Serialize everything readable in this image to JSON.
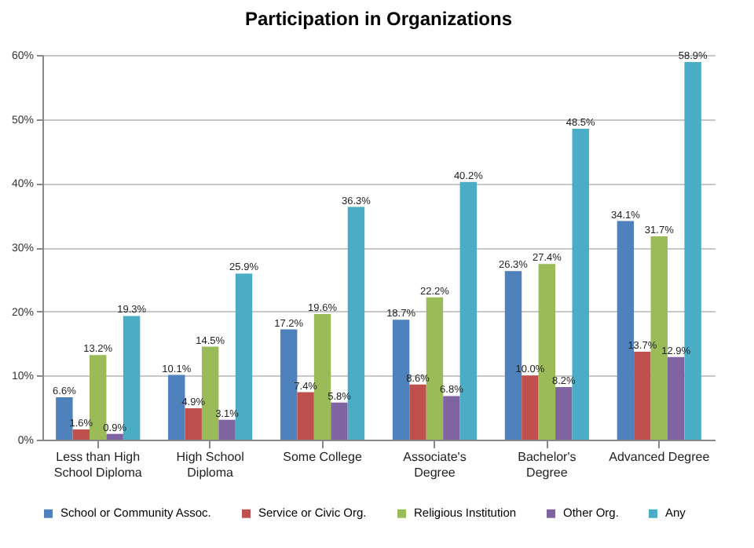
{
  "chart_data": {
    "type": "bar",
    "title": "Participation in Organizations",
    "categories": [
      "Less than High School Diploma",
      "High School Diploma",
      "Some College",
      "Associate's Degree",
      "Bachelor's Degree",
      "Advanced Degree"
    ],
    "series": [
      {
        "name": "School or Community Assoc.",
        "color": "#4f81bd",
        "values": [
          6.6,
          10.1,
          17.2,
          18.7,
          26.3,
          34.1
        ],
        "value_labels": [
          "6.6%",
          "10.1%",
          "17.2%",
          "18.7%",
          "26.3%",
          "34.1%"
        ]
      },
      {
        "name": "Service or Civic Org.",
        "color": "#c0504d",
        "values": [
          1.6,
          4.9,
          7.4,
          8.6,
          10.0,
          13.7
        ],
        "value_labels": [
          "1.6%",
          "4.9%",
          "7.4%",
          "8.6%",
          "10.0%",
          "13.7%"
        ]
      },
      {
        "name": "Religious Institution",
        "color": "#9bbb59",
        "values": [
          13.2,
          14.5,
          19.6,
          22.2,
          27.4,
          31.7
        ],
        "value_labels": [
          "13.2%",
          "14.5%",
          "19.6%",
          "22.2%",
          "27.4%",
          "31.7%"
        ]
      },
      {
        "name": "Other Org.",
        "color": "#8064a2",
        "values": [
          0.9,
          3.1,
          5.8,
          6.8,
          8.2,
          12.9
        ],
        "value_labels": [
          "0.9%",
          "3.1%",
          "5.8%",
          "6.8%",
          "8.2%",
          "12.9%"
        ]
      },
      {
        "name": "Any",
        "color": "#4bacc6",
        "values": [
          19.3,
          25.9,
          36.3,
          40.2,
          48.5,
          58.9
        ],
        "value_labels": [
          "19.3%",
          "25.9%",
          "36.3%",
          "40.2%",
          "48.5%",
          "58.9%"
        ]
      }
    ],
    "ylim": [
      0,
      60
    ],
    "yticks": [
      {
        "value": 0,
        "label": "0%"
      },
      {
        "value": 10,
        "label": "10%"
      },
      {
        "value": 20,
        "label": "20%"
      },
      {
        "value": 30,
        "label": "30%"
      },
      {
        "value": 40,
        "label": "40%"
      },
      {
        "value": 50,
        "label": "50%"
      },
      {
        "value": 60,
        "label": "60%"
      }
    ],
    "grid": "y",
    "legend": "bottom"
  }
}
